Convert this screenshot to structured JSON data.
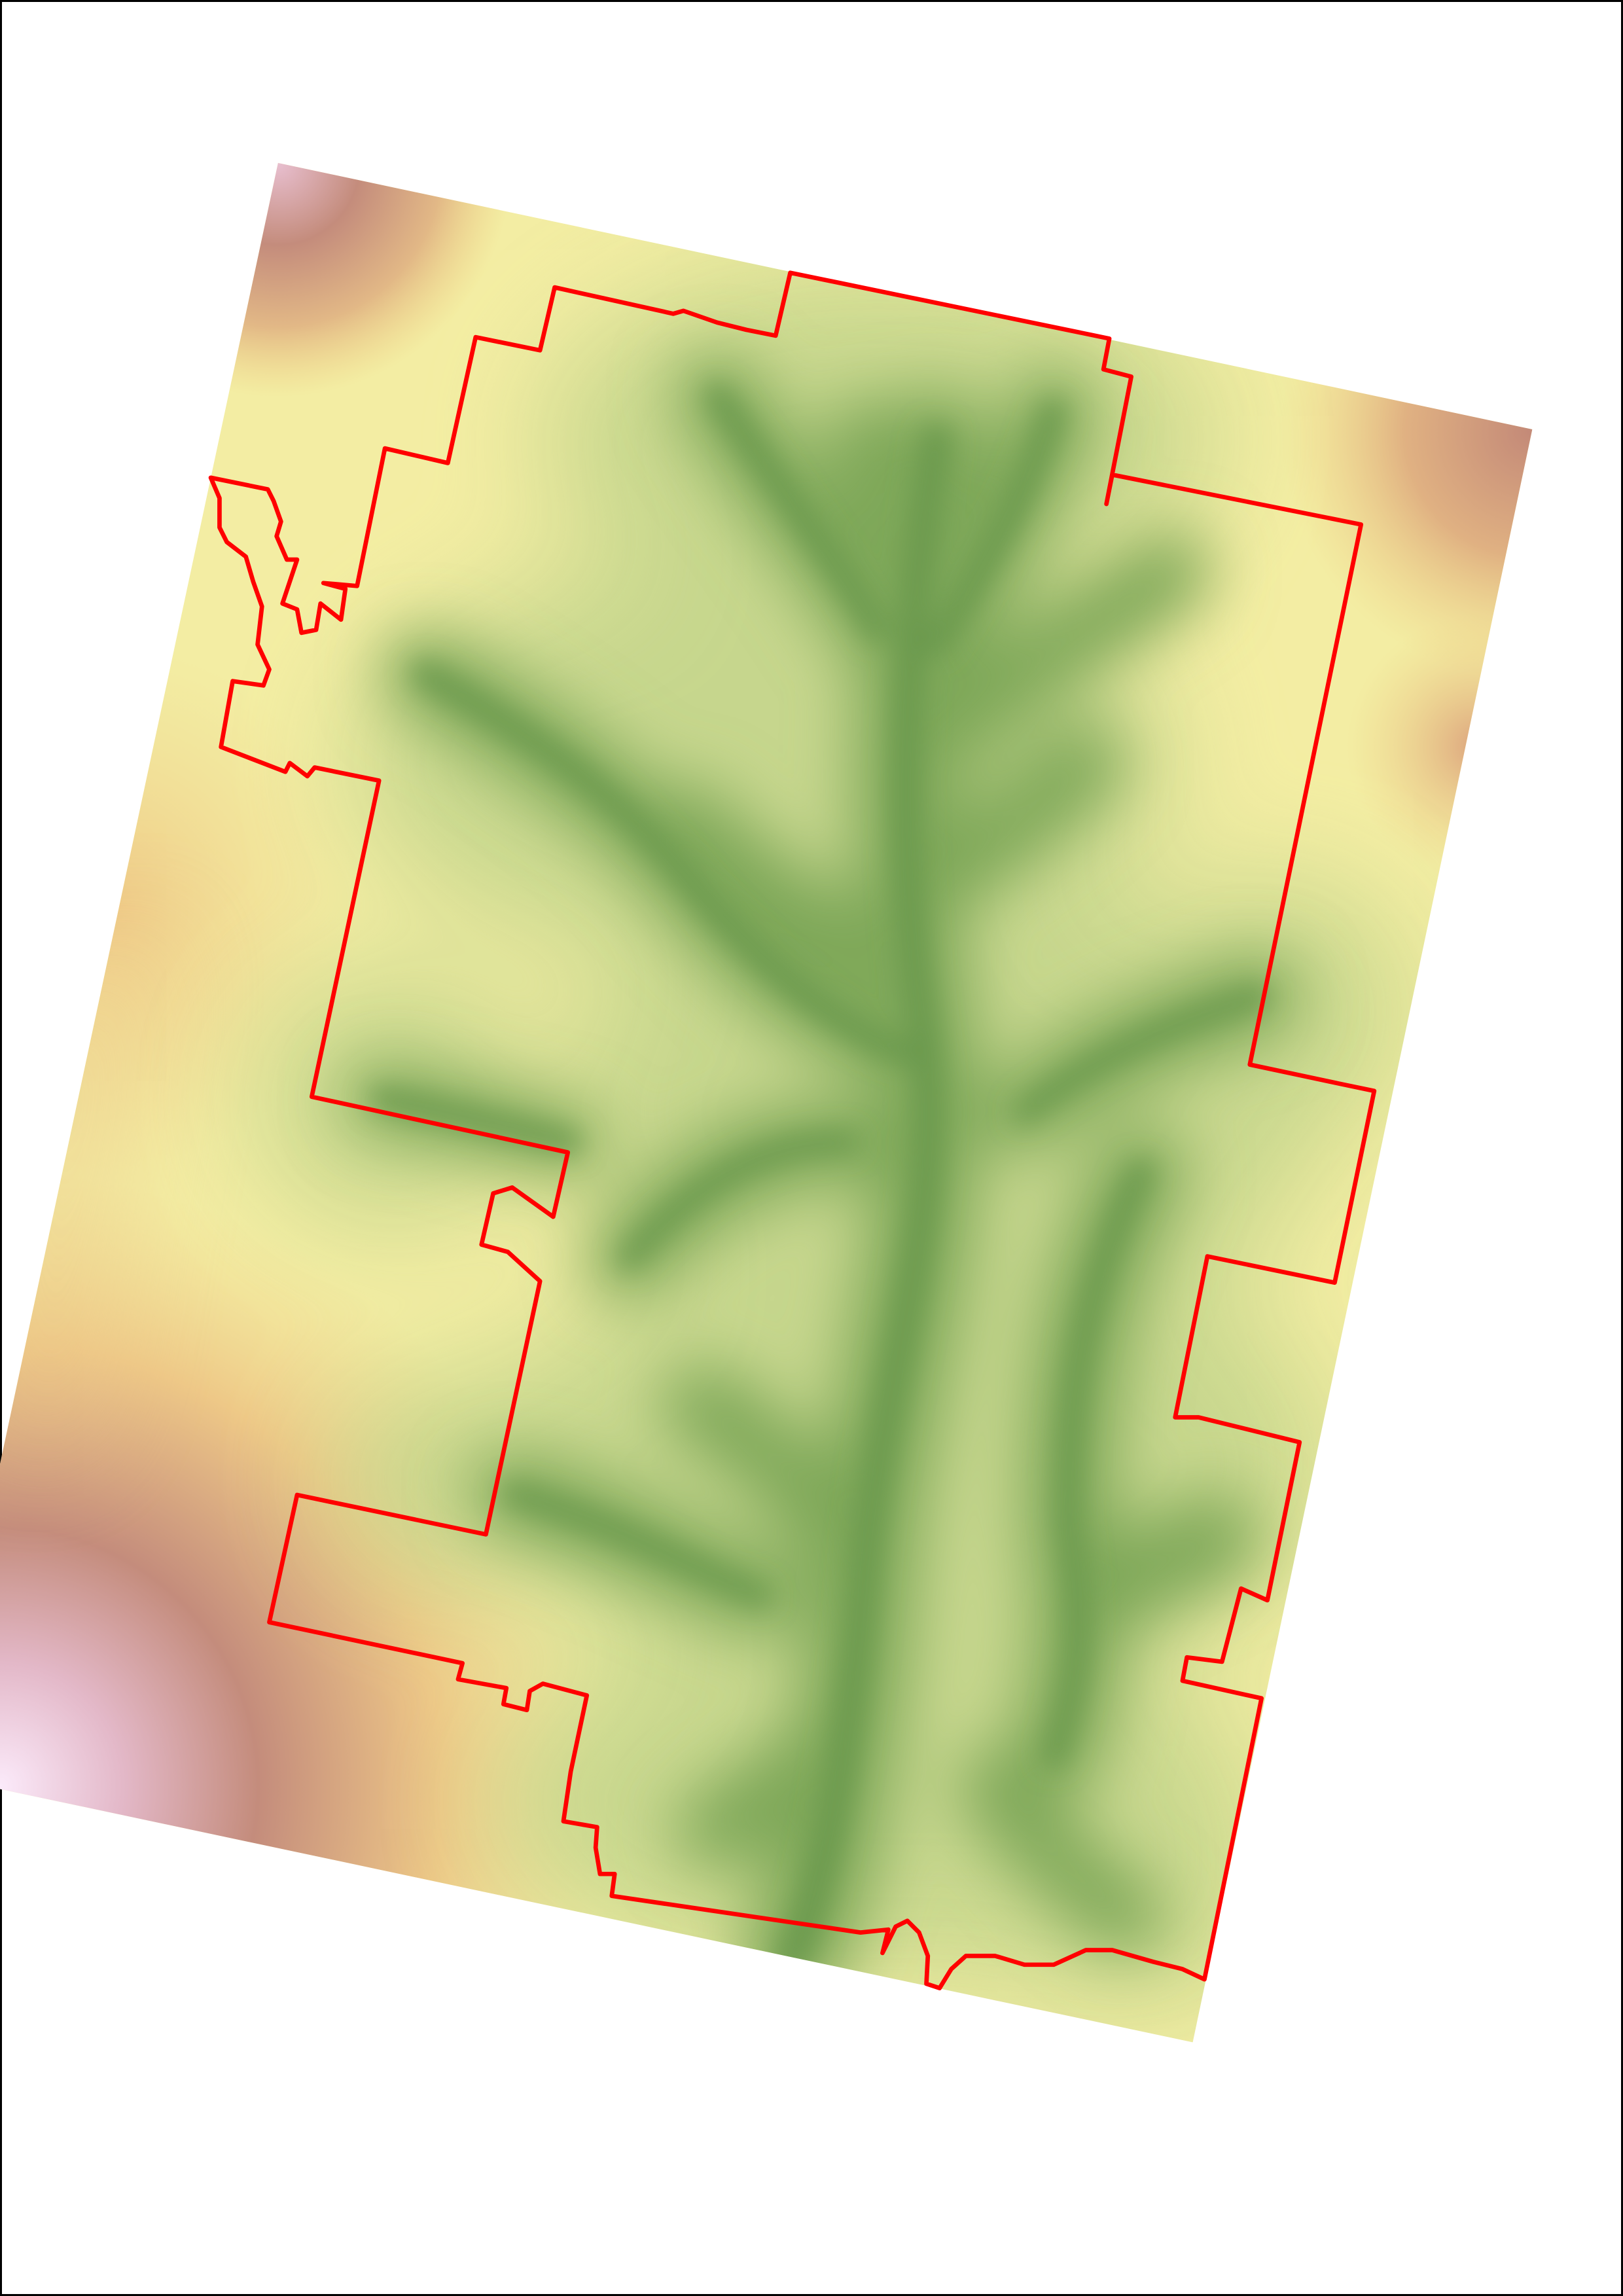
{
  "map": {
    "title": "",
    "raster": {
      "kind": "distance-to-drainage surface",
      "palette": [
        "#6a994e",
        "#a9c47a",
        "#f3efa6",
        "#f0cf86",
        "#c58a78",
        "#fbeafa"
      ]
    },
    "boundary": {
      "stroke_color": "#ff0000"
    },
    "page_background": "#ffffff",
    "frame_color": "#000000"
  }
}
